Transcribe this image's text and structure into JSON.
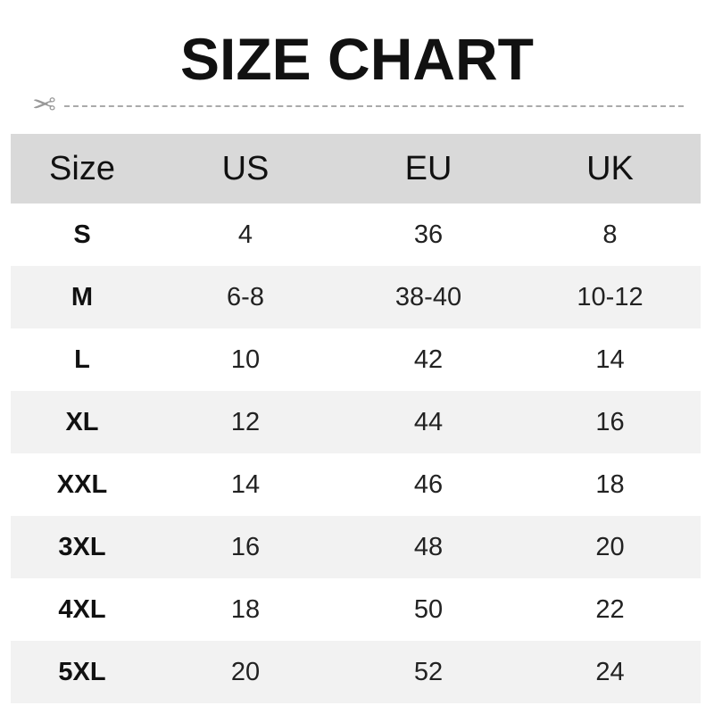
{
  "title": "SIZE CHART",
  "icons": {
    "cut_line": "scissors-icon"
  },
  "colors": {
    "header_bg": "#d9d9d9",
    "alt_row_bg": "#f2f2f2"
  },
  "table": {
    "headers": [
      "Size",
      "US",
      "EU",
      "UK"
    ],
    "rows": [
      [
        "S",
        "4",
        "36",
        "8"
      ],
      [
        "M",
        "6-8",
        "38-40",
        "10-12"
      ],
      [
        "L",
        "10",
        "42",
        "14"
      ],
      [
        "XL",
        "12",
        "44",
        "16"
      ],
      [
        "XXL",
        "14",
        "46",
        "18"
      ],
      [
        "3XL",
        "16",
        "48",
        "20"
      ],
      [
        "4XL",
        "18",
        "50",
        "22"
      ],
      [
        "5XL",
        "20",
        "52",
        "24"
      ]
    ]
  }
}
